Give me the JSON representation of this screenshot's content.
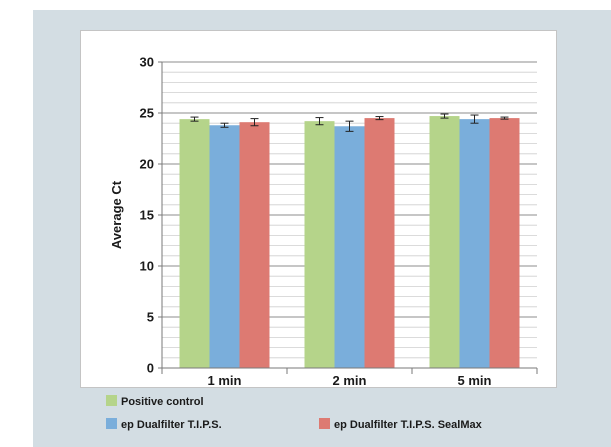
{
  "chart_data": {
    "type": "bar",
    "title": "",
    "xlabel": "",
    "ylabel": "Average Ct",
    "ylim": [
      0,
      30
    ],
    "yticks": [
      0,
      5,
      10,
      15,
      20,
      25,
      30
    ],
    "minor_grid_step": 1,
    "grid": true,
    "legend_position": "bottom",
    "categories": [
      "1 min",
      "2 min",
      "5 min"
    ],
    "series": [
      {
        "name": "Positive control",
        "color": "#b5d48a",
        "values": [
          24.4,
          24.2,
          24.7
        ],
        "errors": [
          0.2,
          0.35,
          0.2
        ]
      },
      {
        "name": "ep Dualfilter T.I.P.S.",
        "color": "#7aaedb",
        "values": [
          23.8,
          23.7,
          24.4
        ],
        "errors": [
          0.2,
          0.5,
          0.4
        ]
      },
      {
        "name": "ep Dualfilter T.I.P.S. SealMax",
        "color": "#dd7a72",
        "values": [
          24.1,
          24.5,
          24.5
        ],
        "errors": [
          0.35,
          0.15,
          0.1
        ]
      }
    ]
  }
}
